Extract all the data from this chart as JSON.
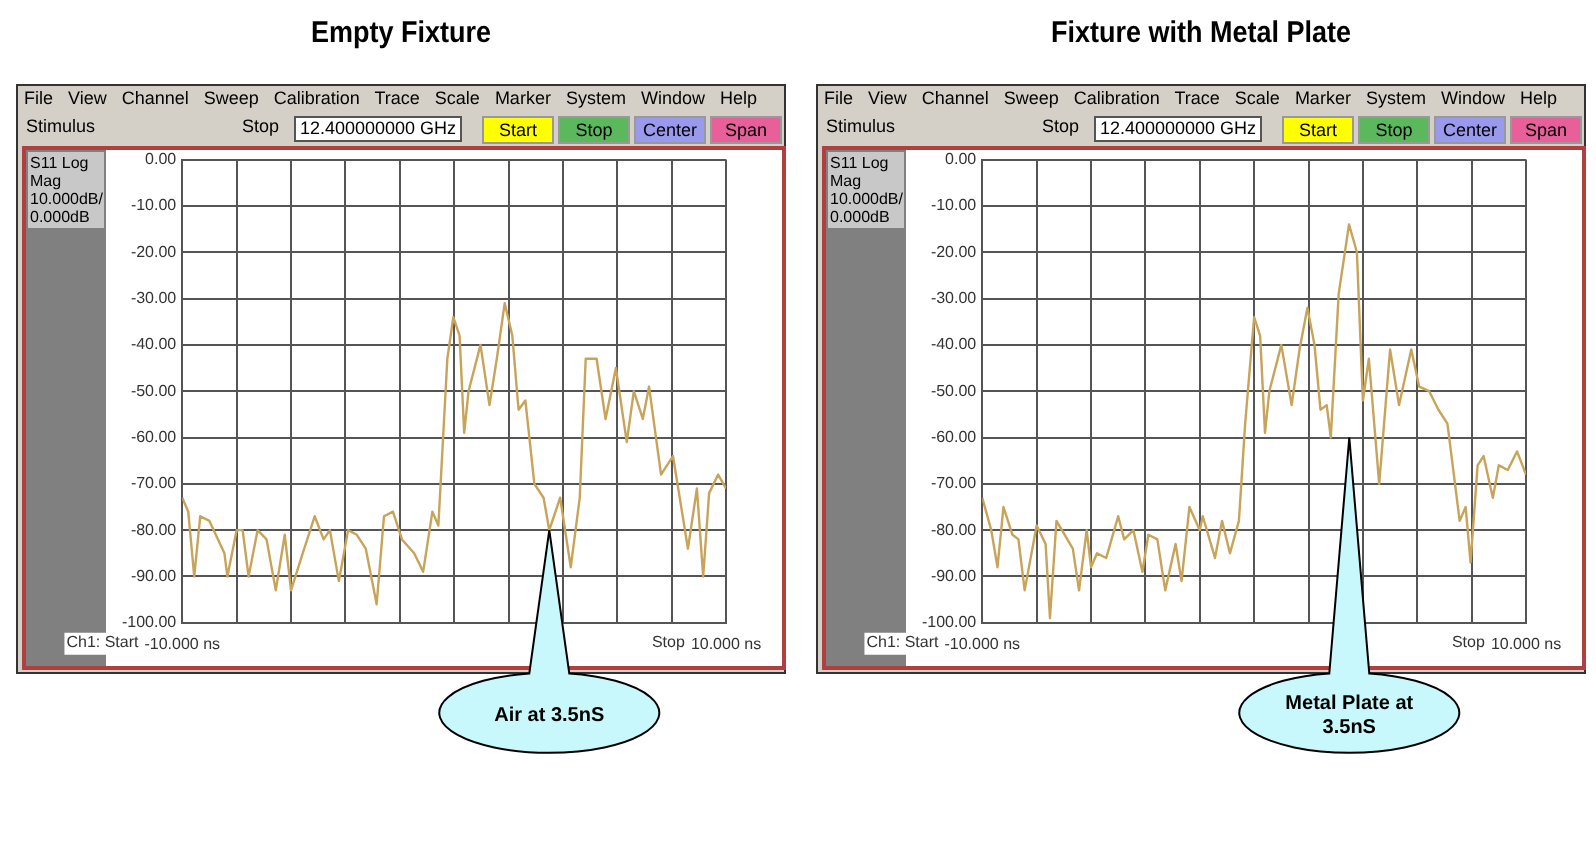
{
  "chart_data": [
    {
      "type": "line",
      "title": "Empty Fixture",
      "xlim": [
        -10,
        10
      ],
      "xticks": [
        {
          "value": -10,
          "label": "-10.000 ns"
        },
        {
          "value": -8,
          "label": null
        },
        {
          "value": -6,
          "label": null
        },
        {
          "value": -4,
          "label": null
        },
        {
          "value": -2,
          "label": null
        },
        {
          "value": 0,
          "label": null
        },
        {
          "value": 2,
          "label": null
        },
        {
          "value": 4,
          "label": null
        },
        {
          "value": 6,
          "label": null
        },
        {
          "value": 8,
          "label": null
        },
        {
          "value": 10,
          "label": "10.000 ns"
        }
      ],
      "ylim": [
        -100,
        0
      ],
      "yticks": [
        {
          "value": 0,
          "label": "0.00"
        },
        {
          "value": -10,
          "label": "-10.00"
        },
        {
          "value": -20,
          "label": "-20.00"
        },
        {
          "value": -30,
          "label": "-30.00"
        },
        {
          "value": -40,
          "label": "-40.00"
        },
        {
          "value": -50,
          "label": "-50.00"
        },
        {
          "value": -60,
          "label": "-60.00"
        },
        {
          "value": -70,
          "label": "-70.00"
        },
        {
          "value": -80,
          "label": "-80.00"
        },
        {
          "value": -90,
          "label": "-90.00"
        },
        {
          "value": -100,
          "label": "-100.00"
        }
      ],
      "grid": true,
      "legend": false,
      "marker": "none",
      "line_style": "solid",
      "series": [
        {
          "color": "#c8a45a",
          "x": [
            -10,
            -9.78,
            -9.56,
            -9.34,
            -9.0,
            -8.45,
            -8.34,
            -8.0,
            -7.78,
            -7.56,
            -7.23,
            -6.9,
            -6.56,
            -6.23,
            -6.0,
            -5.57,
            -5.13,
            -4.8,
            -4.57,
            -4.24,
            -3.9,
            -3.58,
            -3.25,
            -2.85,
            -2.58,
            -2.25,
            -1.92,
            -1.47,
            -1.14,
            -0.8,
            -0.58,
            -0.25,
            -0.03,
            0.2,
            0.37,
            0.53,
            0.97,
            1.3,
            1.57,
            1.86,
            2.14,
            2.37,
            2.62,
            2.95,
            3.29,
            3.5,
            3.9,
            4.29,
            4.62,
            4.84,
            5.24,
            5.57,
            5.95,
            6.35,
            6.61,
            6.94,
            7.17,
            7.61,
            8.05,
            8.6,
            8.93,
            9.16,
            9.38,
            9.71,
            10
          ],
          "values": [
            -73,
            -76,
            -90,
            -77,
            -78,
            -85,
            -90,
            -80,
            -80,
            -90,
            -80,
            -82,
            -93,
            -81,
            -93,
            -85,
            -77,
            -82,
            -80,
            -91,
            -80,
            -81,
            -84,
            -96,
            -77,
            -76,
            -82,
            -85,
            -89,
            -76,
            -79,
            -43,
            -34,
            -38,
            -59,
            -50,
            -40,
            -53,
            -43,
            -31,
            -38,
            -54,
            -52,
            -70,
            -73,
            -80,
            -73,
            -88,
            -73,
            -43,
            -43,
            -56,
            -45,
            -61,
            -50,
            -56,
            -49,
            -68,
            -64,
            -84,
            -71,
            -90,
            -72,
            -68,
            -71
          ]
        }
      ],
      "annotations": [
        "File View Channel Sweep Calibration Trace Scale Marker System Window Help",
        "Stimulus",
        "Stop",
        "12.400000000 GHz",
        "Start",
        "Stop",
        "Center",
        "Span",
        "S11 Log Mag 10.000dB/ 0.000dB",
        "Ch1: Start",
        "Stop",
        "Air at 3.5nS"
      ]
    },
    {
      "type": "line",
      "title": "Fixture with Metal Plate",
      "xlim": [
        -10,
        10
      ],
      "xticks": [
        {
          "value": -10,
          "label": "-10.000 ns"
        },
        {
          "value": -8,
          "label": null
        },
        {
          "value": -6,
          "label": null
        },
        {
          "value": -4,
          "label": null
        },
        {
          "value": -2,
          "label": null
        },
        {
          "value": 0,
          "label": null
        },
        {
          "value": 2,
          "label": null
        },
        {
          "value": 4,
          "label": null
        },
        {
          "value": 6,
          "label": null
        },
        {
          "value": 8,
          "label": null
        },
        {
          "value": 10,
          "label": "10.000 ns"
        }
      ],
      "ylim": [
        -100,
        0
      ],
      "yticks": [
        {
          "value": 0,
          "label": "0.00"
        },
        {
          "value": -10,
          "label": "-10.00"
        },
        {
          "value": -20,
          "label": "-20.00"
        },
        {
          "value": -30,
          "label": "-30.00"
        },
        {
          "value": -40,
          "label": "-40.00"
        },
        {
          "value": -50,
          "label": "-50.00"
        },
        {
          "value": -60,
          "label": "-60.00"
        },
        {
          "value": -70,
          "label": "-70.00"
        },
        {
          "value": -80,
          "label": "-80.00"
        },
        {
          "value": -90,
          "label": "-90.00"
        },
        {
          "value": -100,
          "label": "-100.00"
        }
      ],
      "grid": true,
      "legend": false,
      "marker": "none",
      "line_style": "solid",
      "series": [
        {
          "color": "#c8a45a",
          "x": [
            -10,
            -9.67,
            -9.44,
            -9.22,
            -8.89,
            -8.67,
            -8.44,
            -8.0,
            -7.67,
            -7.51,
            -7.27,
            -6.67,
            -6.44,
            -6.16,
            -6.0,
            -5.78,
            -5.44,
            -5.0,
            -4.78,
            -4.44,
            -4.11,
            -3.89,
            -3.56,
            -3.27,
            -2.89,
            -2.67,
            -2.38,
            -2.0,
            -1.89,
            -1.44,
            -1.18,
            -0.89,
            -0.56,
            -0.33,
            0,
            0.22,
            0.4,
            0.56,
            1.0,
            1.38,
            1.67,
            1.96,
            2.22,
            2.44,
            2.67,
            2.82,
            3.11,
            3.49,
            3.78,
            4.0,
            4.22,
            4.6,
            5.0,
            5.33,
            5.78,
            6.07,
            6.44,
            6.78,
            7.11,
            7.56,
            7.78,
            7.96,
            8.22,
            8.44,
            8.78,
            9.0,
            9.33,
            9.67,
            10
          ],
          "values": [
            -73,
            -80,
            -88,
            -75,
            -81,
            -82,
            -93,
            -79,
            -83,
            -99,
            -78,
            -84,
            -93,
            -80,
            -88,
            -85,
            -86,
            -77,
            -82,
            -80,
            -89,
            -81,
            -82,
            -93,
            -83,
            -91,
            -75,
            -80,
            -77,
            -86,
            -78,
            -85,
            -78,
            -57,
            -34,
            -38,
            -59,
            -50,
            -40,
            -53,
            -41,
            -32,
            -40,
            -54,
            -53,
            -60,
            -29,
            -14,
            -20,
            -52,
            -43,
            -70,
            -41,
            -53,
            -41,
            -49,
            -50,
            -54,
            -57,
            -78,
            -75,
            -87,
            -66,
            -64,
            -73,
            -66,
            -67,
            -63,
            -68
          ]
        }
      ],
      "annotations": [
        "File View Channel Sweep Calibration Trace Scale Marker System Window Help",
        "Stimulus",
        "Stop",
        "12.400000000 GHz",
        "Start",
        "Stop",
        "Center",
        "Span",
        "S11 Log Mag 10.000dB/ 0.000dB",
        "Ch1: Start",
        "Stop",
        "Metal Plate at 3.5nS"
      ]
    }
  ]
}
